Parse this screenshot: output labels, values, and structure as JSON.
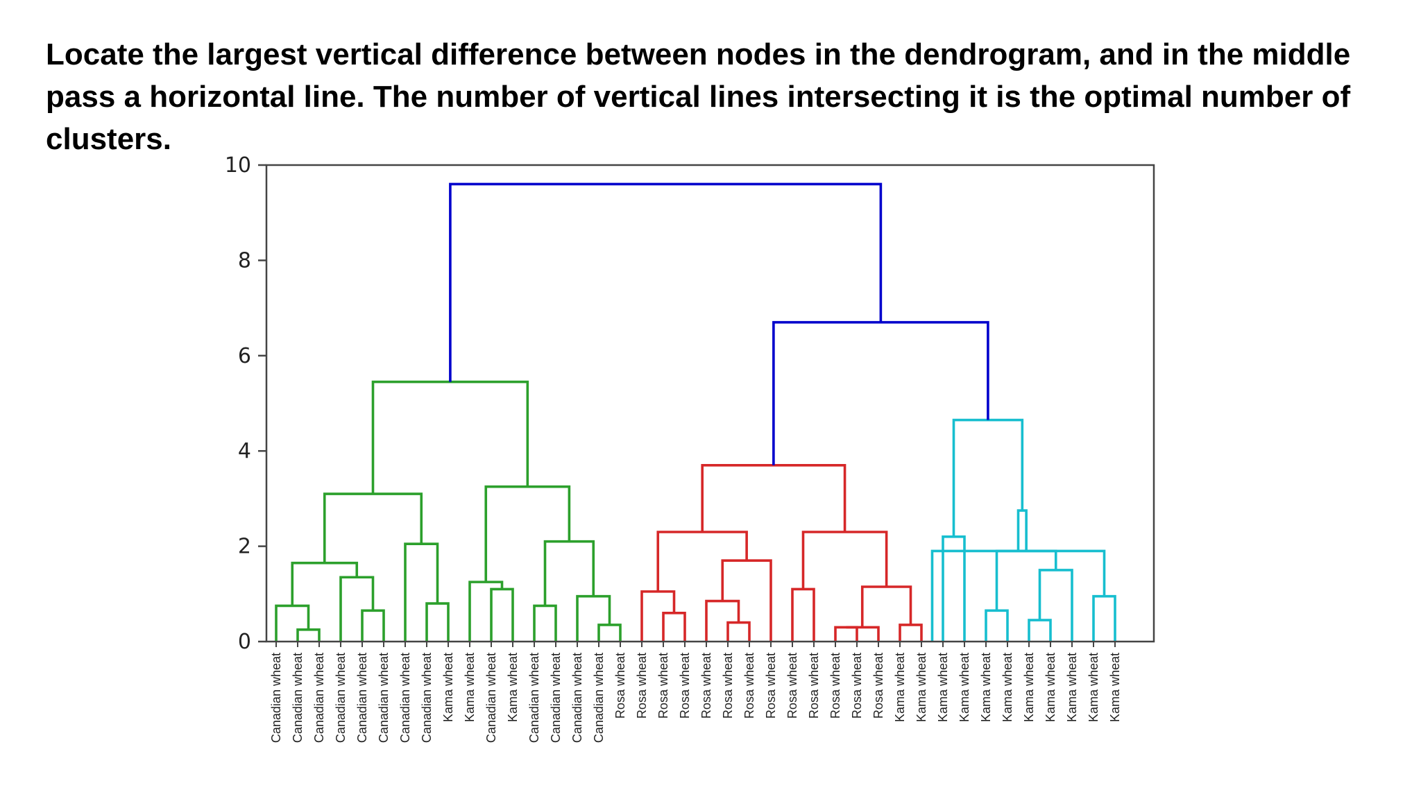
{
  "caption": "Locate the largest vertical difference between nodes in the dendrogram, and in the middle pass a horizontal line. The number of vertical lines intersecting it is the optimal number of clusters.",
  "colors": {
    "green": "#2ca02c",
    "red": "#d62728",
    "cyan": "#17becf",
    "blue": "#0000cc",
    "axis": "#444444"
  },
  "chart_data": {
    "type": "dendrogram",
    "title": "",
    "xlabel": "",
    "ylabel": "",
    "ylim": [
      0,
      10
    ],
    "yticks": [
      0,
      2,
      4,
      6,
      8,
      10
    ],
    "grid": false,
    "leaves": [
      "Canadian wheat",
      "Canadian wheat",
      "Canadian wheat",
      "Canadian wheat",
      "Canadian wheat",
      "Canadian wheat",
      "Canadian wheat",
      "Canadian wheat",
      "Kama wheat",
      "Kama wheat",
      "Canadian wheat",
      "Kama wheat",
      "Canadian wheat",
      "Canadian wheat",
      "Canadian wheat",
      "Canadian wheat",
      "Rosa wheat",
      "Rosa wheat",
      "Rosa wheat",
      "Rosa wheat",
      "Rosa wheat",
      "Rosa wheat",
      "Rosa wheat",
      "Rosa wheat",
      "Rosa wheat",
      "Rosa wheat",
      "Rosa wheat",
      "Rosa wheat",
      "Rosa wheat",
      "Kama wheat",
      "Kama wheat",
      "Kama wheat",
      "Kama wheat",
      "Kama wheat",
      "Kama wheat",
      "Kama wheat",
      "Kama wheat",
      "Kama wheat",
      "Kama wheat",
      "Kama wheat"
    ],
    "merges": [
      {
        "left": 1,
        "right": 2,
        "height": 0.25,
        "color": "green"
      },
      {
        "left": 0,
        "right": 40,
        "height": 0.75,
        "color": "green"
      },
      {
        "left": 4,
        "right": 5,
        "height": 0.65,
        "color": "green"
      },
      {
        "left": 3,
        "right": 42,
        "height": 1.35,
        "color": "green"
      },
      {
        "left": 41,
        "right": 43,
        "height": 1.65,
        "color": "green"
      },
      {
        "left": 7,
        "right": 8,
        "height": 0.8,
        "color": "green"
      },
      {
        "left": 6,
        "right": 45,
        "height": 2.05,
        "color": "green"
      },
      {
        "left": 44,
        "right": 46,
        "height": 3.1,
        "color": "green"
      },
      {
        "left": 10,
        "right": 11,
        "height": 1.1,
        "color": "green"
      },
      {
        "left": 9,
        "right": 48,
        "height": 1.25,
        "color": "green"
      },
      {
        "left": 12,
        "right": 13,
        "height": 0.75,
        "color": "green"
      },
      {
        "left": 15,
        "right": 16,
        "height": 0.35,
        "color": "green"
      },
      {
        "left": 14,
        "right": 51,
        "height": 0.95,
        "color": "green"
      },
      {
        "left": 50,
        "right": 52,
        "height": 2.1,
        "color": "green"
      },
      {
        "left": 49,
        "right": 53,
        "height": 3.25,
        "color": "green"
      },
      {
        "left": 47,
        "right": 54,
        "height": 5.45,
        "color": "green"
      },
      {
        "left": 18,
        "right": 19,
        "height": 0.6,
        "color": "red"
      },
      {
        "left": 17,
        "right": 56,
        "height": 1.05,
        "color": "red"
      },
      {
        "left": 21,
        "right": 22,
        "height": 0.4,
        "color": "red"
      },
      {
        "left": 20,
        "right": 58,
        "height": 0.85,
        "color": "red"
      },
      {
        "left": 59,
        "right": 23,
        "height": 1.7,
        "color": "red"
      },
      {
        "left": 57,
        "right": 60,
        "height": 2.3,
        "color": "red"
      },
      {
        "left": 24,
        "right": 25,
        "height": 1.1,
        "color": "red"
      },
      {
        "left": 26,
        "right": 27,
        "height": 0.3,
        "color": "red"
      },
      {
        "left": 63,
        "right": 28,
        "height": 0.3,
        "color": "red"
      },
      {
        "left": 29,
        "right": 30,
        "height": 0.35,
        "color": "red"
      },
      {
        "left": 64,
        "right": 65,
        "height": 1.15,
        "color": "red"
      },
      {
        "left": 62,
        "right": 66,
        "height": 2.3,
        "color": "red"
      },
      {
        "left": 61,
        "right": 67,
        "height": 3.7,
        "color": "red"
      },
      {
        "left": 31,
        "right": 32,
        "height": 2.2,
        "color": "cyan"
      },
      {
        "left": 33,
        "right": 34,
        "height": 0.65,
        "color": "cyan"
      },
      {
        "left": 35,
        "right": 36,
        "height": 0.45,
        "color": "cyan"
      },
      {
        "left": 71,
        "right": 37,
        "height": 1.5,
        "color": "cyan"
      },
      {
        "left": 70,
        "right": 72,
        "height": 1.9,
        "color": "cyan"
      },
      {
        "left": 38,
        "right": 39,
        "height": 0.95,
        "color": "cyan"
      },
      {
        "left": 30.5,
        "right": 74,
        "height": 1.9,
        "color": "cyan"
      },
      {
        "left": 73,
        "right": 75,
        "height": 2.75,
        "color": "cyan"
      },
      {
        "left": 69,
        "right": 76,
        "height": 4.65,
        "color": "cyan"
      },
      {
        "left": 68,
        "right": 77,
        "height": 6.7,
        "color": "blue"
      },
      {
        "left": 55,
        "right": 78,
        "height": 9.6,
        "color": "blue"
      }
    ]
  }
}
